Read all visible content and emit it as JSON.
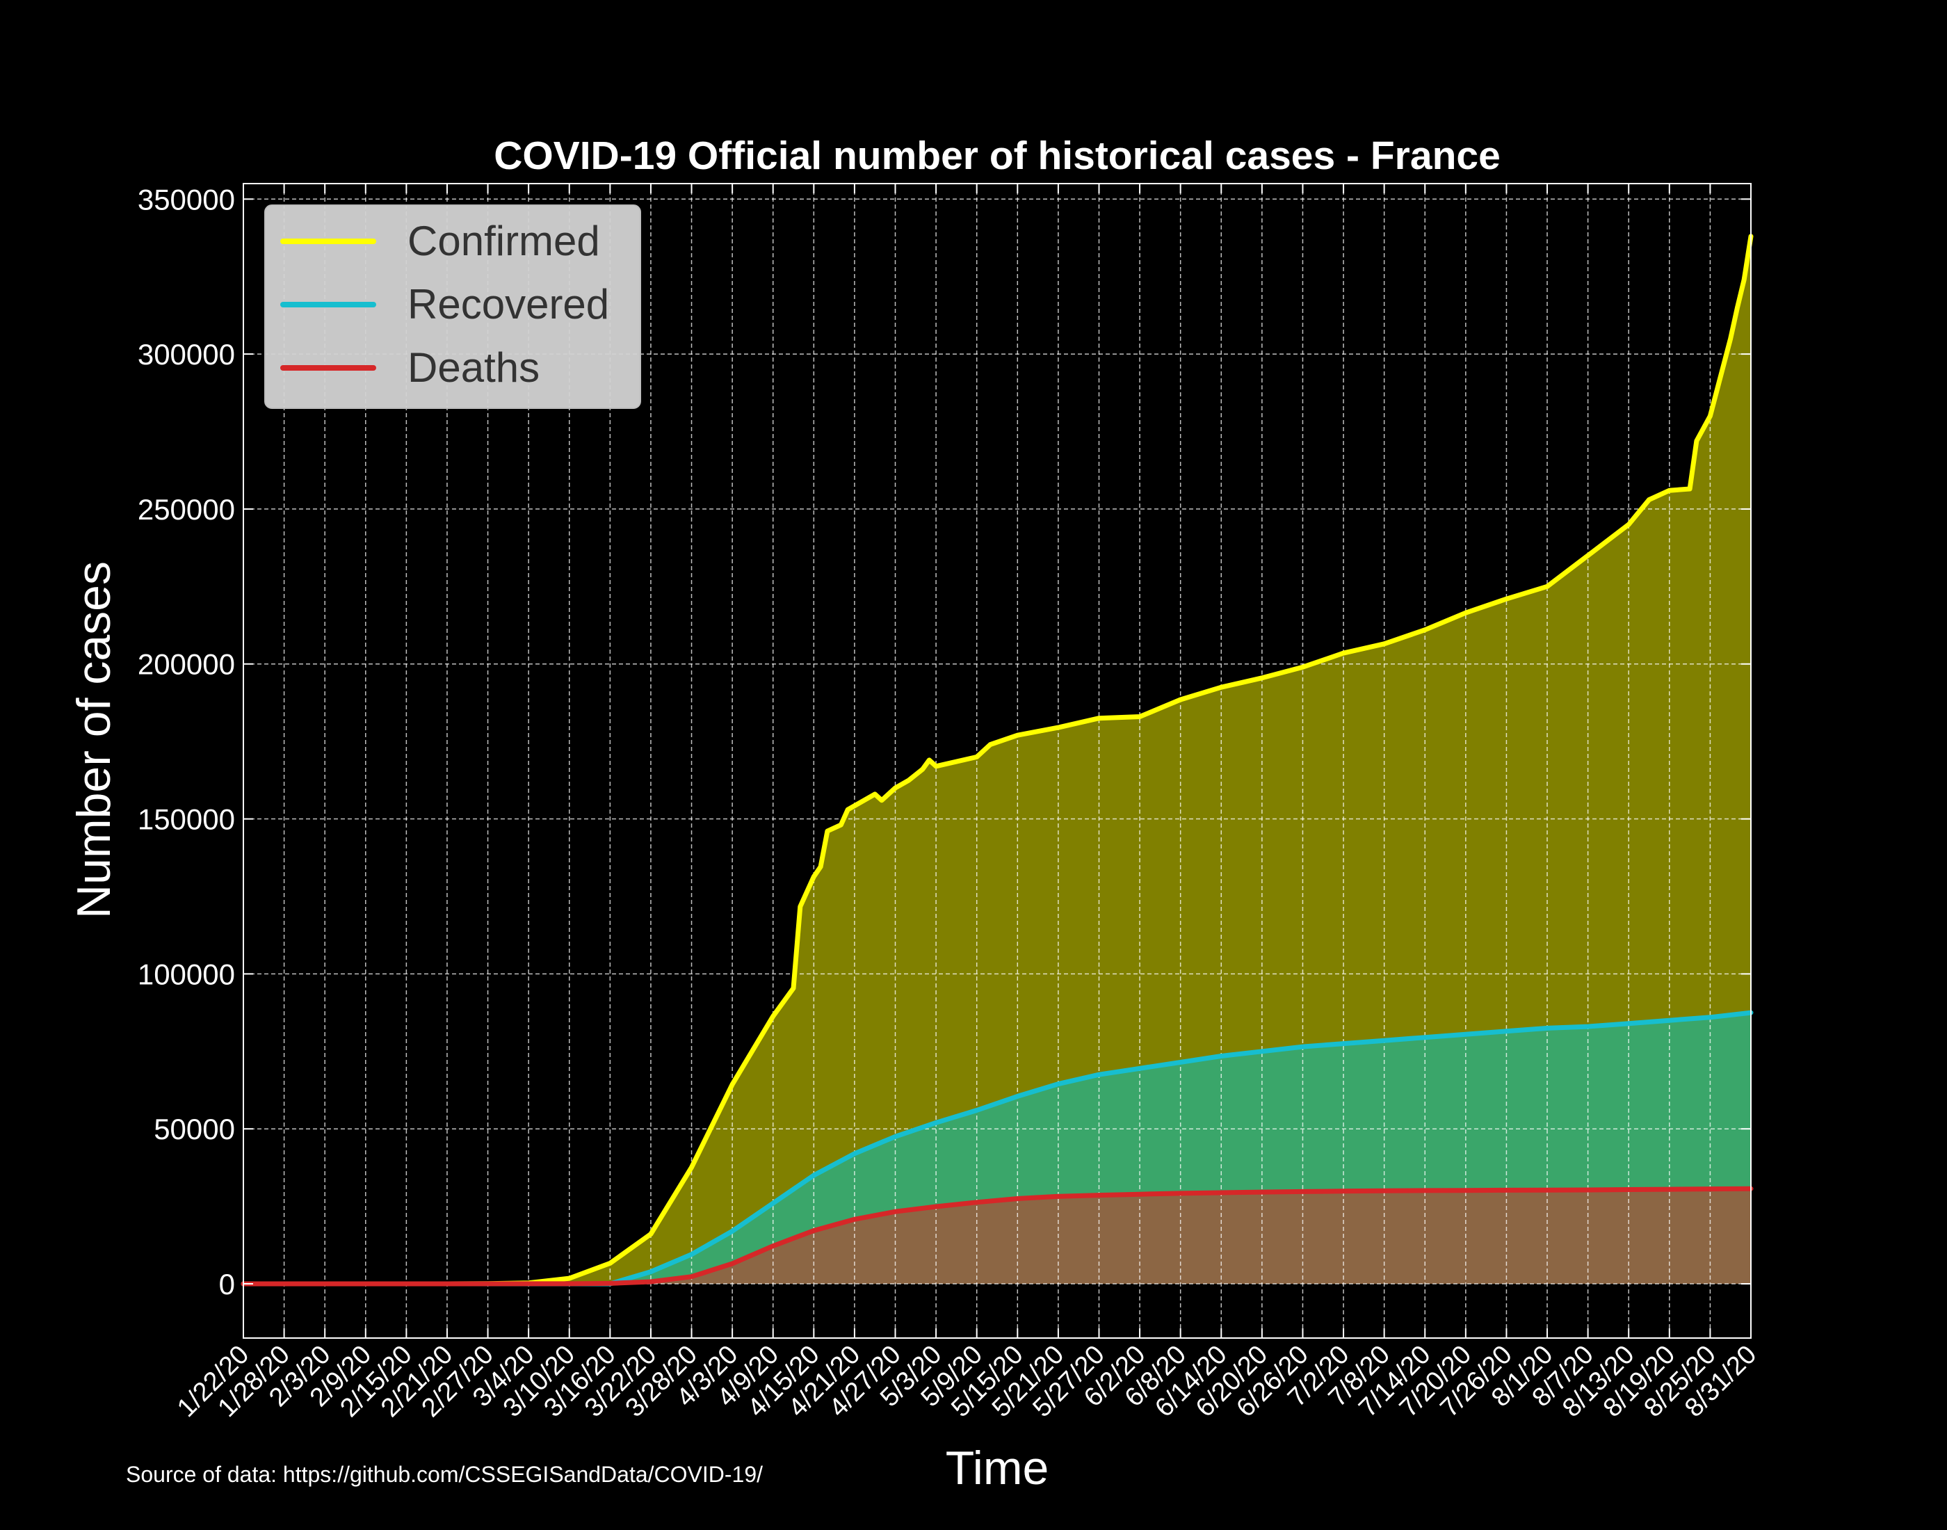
{
  "chart_data": {
    "type": "area",
    "title": "COVID-19 Official number of historical cases - France",
    "xlabel": "Time",
    "ylabel": "Number of cases",
    "ylim": [
      -17500,
      355000
    ],
    "yticks": [
      0,
      50000,
      100000,
      150000,
      200000,
      250000,
      300000,
      350000
    ],
    "x_range": [
      "1/22/20",
      "8/31/20"
    ],
    "xticks": [
      "1/22/20",
      "1/28/20",
      "2/3/20",
      "2/9/20",
      "2/15/20",
      "2/21/20",
      "2/27/20",
      "3/4/20",
      "3/10/20",
      "3/16/20",
      "3/22/20",
      "3/28/20",
      "4/3/20",
      "4/9/20",
      "4/15/20",
      "4/21/20",
      "4/27/20",
      "5/3/20",
      "5/9/20",
      "5/15/20",
      "5/21/20",
      "5/27/20",
      "6/2/20",
      "6/8/20",
      "6/14/20",
      "6/20/20",
      "6/26/20",
      "7/2/20",
      "7/8/20",
      "7/14/20",
      "7/20/20",
      "7/26/20",
      "8/1/20",
      "8/7/20",
      "8/13/20",
      "8/19/20",
      "8/25/20",
      "8/31/20"
    ],
    "grid": true,
    "legend_position": "top-left",
    "series": [
      {
        "name": "Confirmed",
        "line_color": "#ffff00",
        "fill_color": "#808000",
        "points": [
          [
            "1/22/20",
            0
          ],
          [
            "2/21/20",
            12
          ],
          [
            "2/27/20",
            57
          ],
          [
            "3/4/20",
            285
          ],
          [
            "3/10/20",
            1784
          ],
          [
            "3/16/20",
            6650
          ],
          [
            "3/22/20",
            16044
          ],
          [
            "3/28/20",
            37575
          ],
          [
            "4/3/20",
            64338
          ],
          [
            "4/9/20",
            86334
          ],
          [
            "4/12/20",
            95403
          ],
          [
            "4/13/20",
            121712
          ],
          [
            "4/15/20",
            131361
          ],
          [
            "4/16/20",
            134582
          ],
          [
            "4/17/20",
            146075
          ],
          [
            "4/19/20",
            148084
          ],
          [
            "4/20/20",
            153000
          ],
          [
            "4/24/20",
            158000
          ],
          [
            "4/25/20",
            156000
          ],
          [
            "4/27/20",
            160000
          ],
          [
            "4/29/20",
            162500
          ],
          [
            "5/1/20",
            166000
          ],
          [
            "5/2/20",
            169000
          ],
          [
            "5/3/20",
            167000
          ],
          [
            "5/9/20",
            170000
          ],
          [
            "5/11/20",
            174000
          ],
          [
            "5/15/20",
            177000
          ],
          [
            "5/21/20",
            179500
          ],
          [
            "5/27/20",
            182500
          ],
          [
            "6/2/20",
            183000
          ],
          [
            "6/8/20",
            188500
          ],
          [
            "6/14/20",
            192500
          ],
          [
            "6/20/20",
            195500
          ],
          [
            "6/26/20",
            199000
          ],
          [
            "7/2/20",
            203500
          ],
          [
            "7/8/20",
            206500
          ],
          [
            "7/14/20",
            211000
          ],
          [
            "7/20/20",
            216500
          ],
          [
            "7/26/20",
            221000
          ],
          [
            "8/1/20",
            225000
          ],
          [
            "8/7/20",
            235000
          ],
          [
            "8/13/20",
            245000
          ],
          [
            "8/16/20",
            253000
          ],
          [
            "8/19/20",
            256000
          ],
          [
            "8/22/20",
            256500
          ],
          [
            "8/23/20",
            272000
          ],
          [
            "8/25/20",
            280000
          ],
          [
            "8/28/20",
            305000
          ],
          [
            "8/29/20",
            315000
          ],
          [
            "8/30/20",
            324000
          ],
          [
            "8/31/20",
            338000
          ]
        ]
      },
      {
        "name": "Recovered",
        "line_color": "#17becf",
        "fill_color": "#3aa66a",
        "points": [
          [
            "1/22/20",
            0
          ],
          [
            "3/16/20",
            0
          ],
          [
            "3/22/20",
            3900
          ],
          [
            "3/28/20",
            9500
          ],
          [
            "4/3/20",
            17000
          ],
          [
            "4/9/20",
            26000
          ],
          [
            "4/15/20",
            35000
          ],
          [
            "4/21/20",
            42000
          ],
          [
            "4/27/20",
            47500
          ],
          [
            "5/3/20",
            52000
          ],
          [
            "5/9/20",
            56000
          ],
          [
            "5/15/20",
            60500
          ],
          [
            "5/21/20",
            64500
          ],
          [
            "5/27/20",
            67500
          ],
          [
            "6/2/20",
            69500
          ],
          [
            "6/8/20",
            71500
          ],
          [
            "6/14/20",
            73500
          ],
          [
            "6/20/20",
            75000
          ],
          [
            "6/26/20",
            76500
          ],
          [
            "7/2/20",
            77500
          ],
          [
            "7/8/20",
            78500
          ],
          [
            "7/14/20",
            79500
          ],
          [
            "7/20/20",
            80500
          ],
          [
            "7/26/20",
            81500
          ],
          [
            "8/1/20",
            82500
          ],
          [
            "8/7/20",
            83000
          ],
          [
            "8/13/20",
            84000
          ],
          [
            "8/19/20",
            85000
          ],
          [
            "8/25/20",
            86000
          ],
          [
            "8/31/20",
            87500
          ]
        ]
      },
      {
        "name": "Deaths",
        "line_color": "#d62728",
        "fill_color": "#8c6644",
        "points": [
          [
            "1/22/20",
            0
          ],
          [
            "3/10/20",
            33
          ],
          [
            "3/16/20",
            148
          ],
          [
            "3/22/20",
            674
          ],
          [
            "3/28/20",
            2314
          ],
          [
            "4/3/20",
            6520
          ],
          [
            "4/9/20",
            12210
          ],
          [
            "4/15/20",
            17167
          ],
          [
            "4/21/20",
            20796
          ],
          [
            "4/27/20",
            23293
          ],
          [
            "5/3/20",
            24900
          ],
          [
            "5/9/20",
            26300
          ],
          [
            "5/15/20",
            27500
          ],
          [
            "5/21/20",
            28200
          ],
          [
            "5/27/20",
            28600
          ],
          [
            "6/2/20",
            28900
          ],
          [
            "6/8/20",
            29200
          ],
          [
            "6/14/20",
            29400
          ],
          [
            "6/20/20",
            29600
          ],
          [
            "6/26/20",
            29750
          ],
          [
            "7/2/20",
            29900
          ],
          [
            "7/8/20",
            30000
          ],
          [
            "7/14/20",
            30100
          ],
          [
            "7/20/20",
            30150
          ],
          [
            "7/26/20",
            30200
          ],
          [
            "8/1/20",
            30250
          ],
          [
            "8/7/20",
            30300
          ],
          [
            "8/13/20",
            30400
          ],
          [
            "8/19/20",
            30500
          ],
          [
            "8/25/20",
            30600
          ],
          [
            "8/31/20",
            30700
          ]
        ]
      }
    ]
  },
  "footer": {
    "source_note": "Source of data: https://github.com/CSSEGISandData/COVID-19/"
  }
}
